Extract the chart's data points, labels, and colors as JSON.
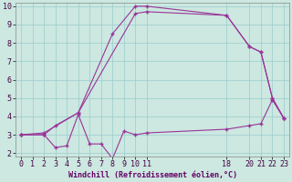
{
  "xlabel": "Windchill (Refroidissement éolien,°C)",
  "bg_color": "#cce8e0",
  "line_color": "#993399",
  "grid_color": "#99cccc",
  "xlim": [
    -0.5,
    23.5
  ],
  "ylim": [
    1.8,
    10.2
  ],
  "xticks": [
    0,
    1,
    2,
    3,
    4,
    5,
    6,
    7,
    8,
    9,
    10,
    11,
    18,
    20,
    21,
    22,
    23
  ],
  "yticks": [
    2,
    3,
    4,
    5,
    6,
    7,
    8,
    9,
    10
  ],
  "line1_x": [
    0,
    2,
    3,
    5,
    8,
    10,
    11,
    18,
    20,
    21,
    22,
    23
  ],
  "line1_y": [
    3,
    3,
    3.5,
    4.2,
    8.5,
    10,
    10,
    9.5,
    7.8,
    7.5,
    5.0,
    3.9
  ],
  "line2_x": [
    0,
    2,
    3,
    4,
    5,
    6,
    7,
    8,
    9,
    10,
    11,
    18,
    20,
    21,
    22,
    23
  ],
  "line2_y": [
    3,
    3,
    2.3,
    2.4,
    4.1,
    2.5,
    2.5,
    1.7,
    3.2,
    3.0,
    3.1,
    3.3,
    3.5,
    3.6,
    4.9,
    3.9
  ],
  "line3_x": [
    0,
    2,
    5,
    10,
    11,
    18,
    20,
    21,
    22,
    23
  ],
  "line3_y": [
    3.0,
    3.1,
    4.2,
    9.6,
    9.7,
    9.5,
    7.8,
    7.5,
    5.0,
    3.9
  ],
  "xlabel_color": "#660066",
  "xlabel_fontsize": 6,
  "tick_fontsize": 6
}
